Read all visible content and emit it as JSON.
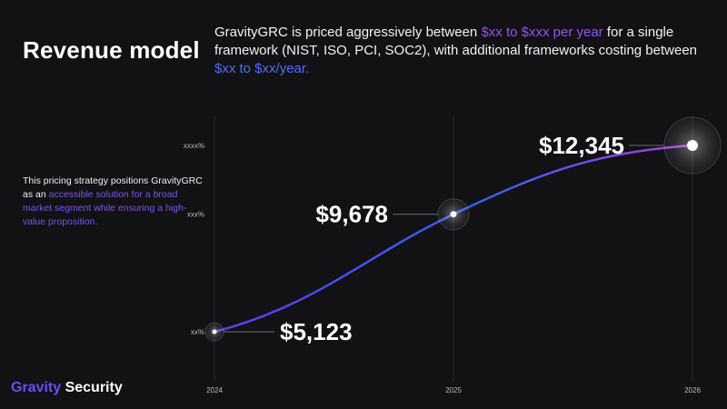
{
  "slide": {
    "title": "Revenue model",
    "headline_parts": [
      {
        "text": "GravityGRC is priced aggressively between ",
        "style": "plain"
      },
      {
        "text": "$xx to $xxx per year",
        "style": "purple"
      },
      {
        "text": " for a single framework (NIST, ISO, PCI, SOC2), with additional frameworks costing between ",
        "style": "plain"
      },
      {
        "text": "$xx to $xx/year.",
        "style": "blue"
      }
    ],
    "side_parts": [
      {
        "text": "This pricing strategy positions GravityGRC as an ",
        "style": "plain"
      },
      {
        "text": "accessible solution for a broad market segment while ensuring a high-value proposition.",
        "style": "hl"
      }
    ],
    "brand": {
      "part1": "Gravity",
      "part2": " Security"
    }
  },
  "colors": {
    "background": "#121114",
    "accent_purple": "#8f56f5",
    "accent_blue": "#4f6ef7",
    "line_start": "#5a3df0",
    "line_mid": "#2f63f2",
    "line_end": "#b23ad9"
  },
  "chart_data": {
    "type": "line",
    "x": [
      "2024",
      "2025",
      "2026"
    ],
    "series": [
      {
        "values": [
          5123,
          9678,
          12345
        ],
        "labels": [
          "$5,123",
          "$9,678",
          "$12,345"
        ]
      }
    ],
    "y_tick_labels": [
      "xx%",
      "xxx%",
      "xxxx%"
    ],
    "ylim": [
      5123,
      12345
    ],
    "grid": "vertical"
  }
}
